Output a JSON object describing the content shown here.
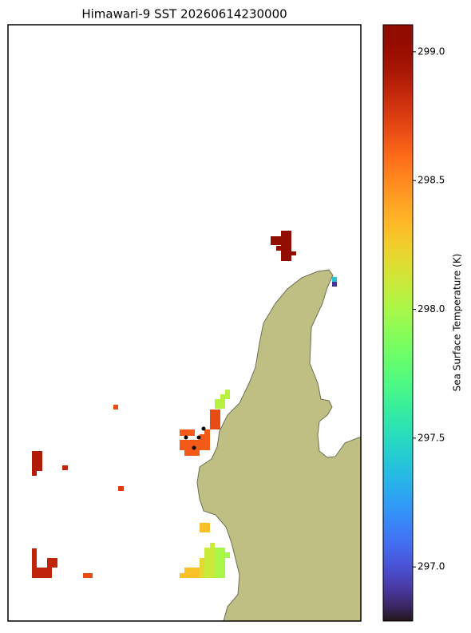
{
  "chart_data": {
    "type": "heatmap",
    "title": "Himawari-9 SST 20260614230000",
    "colorbar_label": "Sea Surface Temperature (K)",
    "colormap": "turbo",
    "clim": [
      296.79,
      299.105
    ],
    "cticks": [
      {
        "value": 297.0,
        "label": "297.0"
      },
      {
        "value": 297.5,
        "label": "297.5"
      },
      {
        "value": 298.0,
        "label": "298.0"
      },
      {
        "value": 298.5,
        "label": "298.5"
      },
      {
        "value": 299.0,
        "label": "299.0"
      }
    ],
    "values": [
      299.1,
      297.4,
      296.9,
      298.65,
      298.7,
      298.05,
      298.7,
      298.9,
      298.85,
      298.75,
      298.3,
      298.85,
      298.7,
      298.3,
      298.2,
      298.1,
      298.0
    ]
  }
}
